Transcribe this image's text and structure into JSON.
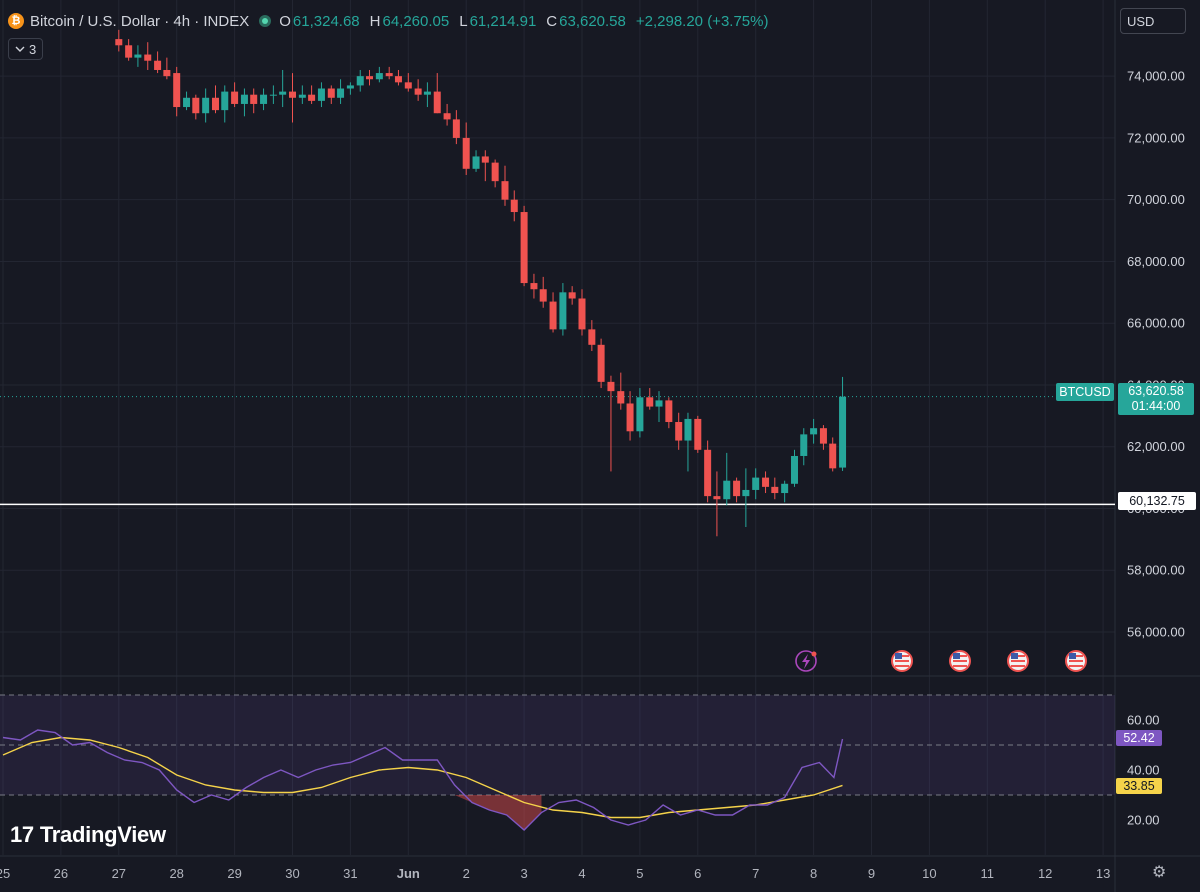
{
  "legend": {
    "coin_glyph": "₿",
    "symbol": "Bitcoin / U.S. Dollar · 4h · INDEX",
    "o_key": "O",
    "o_val": "61,324.68",
    "h_key": "H",
    "h_val": "64,260.05",
    "l_key": "L",
    "l_val": "61,214.91",
    "c_key": "C",
    "c_val": "63,620.58",
    "change": "+2,298.20 (+3.75%)",
    "indicators_count": "3"
  },
  "currency": "USD",
  "price_tags": {
    "symbol": "BTCUSD",
    "last_price": "63,620.58",
    "countdown": "01:44:00",
    "level": "60,132.75"
  },
  "rsi_tags": {
    "value": "52.42",
    "ma": "33.85"
  },
  "branding": "TradingView",
  "colors": {
    "up": "#26a69a",
    "down": "#ef5350",
    "rsi": "#7e57c2",
    "rsi_ma": "#f5d34a",
    "background": "#171923"
  },
  "chart_data": [
    {
      "type": "candlestick",
      "title": "Bitcoin / U.S. Dollar · 4h · INDEX",
      "y_ticks": [
        56000,
        58000,
        60000,
        62000,
        64000,
        66000,
        68000,
        70000,
        72000,
        74000
      ],
      "y_tick_labels": [
        "56,000.00",
        "58,000.00",
        "60,000.00",
        "62,000.00",
        "64,000.00",
        "66,000.00",
        "68,000.00",
        "70,000.00",
        "72,000.00",
        "74,000.00"
      ],
      "ylim": [
        55000,
        75200
      ],
      "x_ticks": [
        {
          "label": "25",
          "day": 25
        },
        {
          "label": "26",
          "day": 26
        },
        {
          "label": "27",
          "day": 27
        },
        {
          "label": "28",
          "day": 28
        },
        {
          "label": "29",
          "day": 29
        },
        {
          "label": "30",
          "day": 30
        },
        {
          "label": "31",
          "day": 31
        },
        {
          "label": "Jun",
          "day": 32
        },
        {
          "label": "2",
          "day": 33
        },
        {
          "label": "3",
          "day": 34
        },
        {
          "label": "4",
          "day": 35
        },
        {
          "label": "5",
          "day": 36
        },
        {
          "label": "6",
          "day": 37
        },
        {
          "label": "7",
          "day": 38
        },
        {
          "label": "8",
          "day": 39
        },
        {
          "label": "9",
          "day": 40
        },
        {
          "label": "10",
          "day": 41
        },
        {
          "label": "11",
          "day": 42
        },
        {
          "label": "12",
          "day": 43
        },
        {
          "label": "13",
          "day": 44
        }
      ],
      "horizontal_line": 60132.75,
      "last_price": 63620.58,
      "candles": [
        {
          "day": 27.0,
          "o": 75200,
          "h": 75500,
          "l": 74800,
          "c": 75000
        },
        {
          "day": 27.17,
          "o": 75000,
          "h": 75200,
          "l": 74500,
          "c": 74600
        },
        {
          "day": 27.33,
          "o": 74600,
          "h": 75000,
          "l": 74300,
          "c": 74700
        },
        {
          "day": 27.5,
          "o": 74700,
          "h": 75100,
          "l": 74200,
          "c": 74500
        },
        {
          "day": 27.67,
          "o": 74500,
          "h": 74800,
          "l": 74100,
          "c": 74200
        },
        {
          "day": 27.83,
          "o": 74200,
          "h": 74600,
          "l": 73900,
          "c": 74000
        },
        {
          "day": 28.0,
          "o": 74100,
          "h": 74300,
          "l": 72700,
          "c": 73000
        },
        {
          "day": 28.17,
          "o": 73000,
          "h": 73500,
          "l": 72900,
          "c": 73300
        },
        {
          "day": 28.33,
          "o": 73300,
          "h": 73400,
          "l": 72600,
          "c": 72800
        },
        {
          "day": 28.5,
          "o": 72800,
          "h": 73600,
          "l": 72500,
          "c": 73300
        },
        {
          "day": 28.67,
          "o": 73300,
          "h": 73700,
          "l": 72800,
          "c": 72900
        },
        {
          "day": 28.83,
          "o": 72900,
          "h": 73700,
          "l": 72500,
          "c": 73500
        },
        {
          "day": 29.0,
          "o": 73500,
          "h": 73800,
          "l": 73000,
          "c": 73100
        },
        {
          "day": 29.17,
          "o": 73100,
          "h": 73600,
          "l": 72700,
          "c": 73400
        },
        {
          "day": 29.33,
          "o": 73400,
          "h": 73600,
          "l": 72800,
          "c": 73100
        },
        {
          "day": 29.5,
          "o": 73100,
          "h": 73600,
          "l": 72900,
          "c": 73400
        },
        {
          "day": 29.67,
          "o": 73400,
          "h": 73700,
          "l": 73100,
          "c": 73400
        },
        {
          "day": 29.83,
          "o": 73400,
          "h": 74200,
          "l": 73000,
          "c": 73500
        },
        {
          "day": 30.0,
          "o": 73500,
          "h": 74100,
          "l": 72500,
          "c": 73300
        },
        {
          "day": 30.17,
          "o": 73300,
          "h": 73700,
          "l": 73100,
          "c": 73400
        },
        {
          "day": 30.33,
          "o": 73400,
          "h": 73700,
          "l": 73100,
          "c": 73200
        },
        {
          "day": 30.5,
          "o": 73200,
          "h": 73800,
          "l": 73000,
          "c": 73600
        },
        {
          "day": 30.67,
          "o": 73600,
          "h": 73700,
          "l": 73100,
          "c": 73300
        },
        {
          "day": 30.83,
          "o": 73300,
          "h": 73900,
          "l": 73100,
          "c": 73600
        },
        {
          "day": 31.0,
          "o": 73600,
          "h": 73800,
          "l": 73400,
          "c": 73700
        },
        {
          "day": 31.17,
          "o": 73700,
          "h": 74200,
          "l": 73500,
          "c": 74000
        },
        {
          "day": 31.33,
          "o": 74000,
          "h": 74200,
          "l": 73700,
          "c": 73900
        },
        {
          "day": 31.5,
          "o": 73900,
          "h": 74300,
          "l": 73800,
          "c": 74100
        },
        {
          "day": 31.67,
          "o": 74100,
          "h": 74300,
          "l": 73900,
          "c": 74000
        },
        {
          "day": 31.83,
          "o": 74000,
          "h": 74200,
          "l": 73700,
          "c": 73800
        },
        {
          "day": 32.0,
          "o": 73800,
          "h": 74100,
          "l": 73500,
          "c": 73600
        },
        {
          "day": 32.17,
          "o": 73600,
          "h": 73900,
          "l": 73200,
          "c": 73400
        },
        {
          "day": 32.33,
          "o": 73400,
          "h": 73800,
          "l": 73000,
          "c": 73500
        },
        {
          "day": 32.5,
          "o": 73500,
          "h": 74100,
          "l": 72800,
          "c": 72800
        },
        {
          "day": 32.67,
          "o": 72800,
          "h": 73100,
          "l": 72400,
          "c": 72600
        },
        {
          "day": 32.83,
          "o": 72600,
          "h": 72900,
          "l": 71800,
          "c": 72000
        },
        {
          "day": 33.0,
          "o": 72000,
          "h": 72500,
          "l": 70800,
          "c": 71000
        },
        {
          "day": 33.17,
          "o": 71000,
          "h": 71600,
          "l": 70900,
          "c": 71400
        },
        {
          "day": 33.33,
          "o": 71400,
          "h": 71600,
          "l": 70600,
          "c": 71200
        },
        {
          "day": 33.5,
          "o": 71200,
          "h": 71300,
          "l": 70400,
          "c": 70600
        },
        {
          "day": 33.67,
          "o": 70600,
          "h": 71100,
          "l": 69800,
          "c": 70000
        },
        {
          "day": 33.83,
          "o": 70000,
          "h": 70300,
          "l": 69300,
          "c": 69600
        },
        {
          "day": 34.0,
          "o": 69600,
          "h": 69800,
          "l": 67200,
          "c": 67300
        },
        {
          "day": 34.17,
          "o": 67300,
          "h": 67600,
          "l": 66800,
          "c": 67100
        },
        {
          "day": 34.33,
          "o": 67100,
          "h": 67500,
          "l": 66500,
          "c": 66700
        },
        {
          "day": 34.5,
          "o": 66700,
          "h": 67000,
          "l": 65700,
          "c": 65800
        },
        {
          "day": 34.67,
          "o": 65800,
          "h": 67300,
          "l": 65600,
          "c": 67000
        },
        {
          "day": 34.83,
          "o": 67000,
          "h": 67200,
          "l": 66600,
          "c": 66800
        },
        {
          "day": 35.0,
          "o": 66800,
          "h": 67100,
          "l": 65600,
          "c": 65800
        },
        {
          "day": 35.17,
          "o": 65800,
          "h": 66100,
          "l": 65100,
          "c": 65300
        },
        {
          "day": 35.33,
          "o": 65300,
          "h": 65500,
          "l": 63900,
          "c": 64100
        },
        {
          "day": 35.5,
          "o": 64100,
          "h": 64300,
          "l": 61200,
          "c": 63800
        },
        {
          "day": 35.67,
          "o": 63800,
          "h": 64400,
          "l": 63200,
          "c": 63400
        },
        {
          "day": 35.83,
          "o": 63400,
          "h": 63800,
          "l": 62200,
          "c": 62500
        },
        {
          "day": 36.0,
          "o": 62500,
          "h": 63900,
          "l": 62300,
          "c": 63600
        },
        {
          "day": 36.17,
          "o": 63600,
          "h": 63900,
          "l": 63200,
          "c": 63300
        },
        {
          "day": 36.33,
          "o": 63300,
          "h": 63800,
          "l": 62800,
          "c": 63500
        },
        {
          "day": 36.5,
          "o": 63500,
          "h": 63600,
          "l": 62600,
          "c": 62800
        },
        {
          "day": 36.67,
          "o": 62800,
          "h": 63100,
          "l": 61900,
          "c": 62200
        },
        {
          "day": 36.83,
          "o": 62200,
          "h": 63100,
          "l": 61200,
          "c": 62900
        },
        {
          "day": 37.0,
          "o": 62900,
          "h": 63000,
          "l": 61800,
          "c": 61900
        },
        {
          "day": 37.17,
          "o": 61900,
          "h": 62200,
          "l": 60200,
          "c": 60400
        },
        {
          "day": 37.33,
          "o": 60400,
          "h": 61200,
          "l": 59100,
          "c": 60300
        },
        {
          "day": 37.5,
          "o": 60300,
          "h": 61800,
          "l": 60100,
          "c": 60900
        },
        {
          "day": 37.67,
          "o": 60900,
          "h": 61000,
          "l": 60200,
          "c": 60400
        },
        {
          "day": 37.83,
          "o": 60400,
          "h": 61300,
          "l": 59400,
          "c": 60600
        },
        {
          "day": 38.0,
          "o": 60600,
          "h": 61300,
          "l": 60300,
          "c": 61000
        },
        {
          "day": 38.17,
          "o": 61000,
          "h": 61200,
          "l": 60500,
          "c": 60700
        },
        {
          "day": 38.33,
          "o": 60700,
          "h": 61000,
          "l": 60300,
          "c": 60500
        },
        {
          "day": 38.5,
          "o": 60500,
          "h": 60900,
          "l": 60200,
          "c": 60800
        },
        {
          "day": 38.67,
          "o": 60800,
          "h": 61900,
          "l": 60700,
          "c": 61700
        },
        {
          "day": 38.83,
          "o": 61700,
          "h": 62600,
          "l": 61400,
          "c": 62400
        },
        {
          "day": 39.0,
          "o": 62400,
          "h": 62900,
          "l": 62100,
          "c": 62600
        },
        {
          "day": 39.17,
          "o": 62600,
          "h": 62700,
          "l": 61900,
          "c": 62100
        },
        {
          "day": 39.33,
          "o": 62100,
          "h": 62300,
          "l": 61200,
          "c": 61300
        },
        {
          "day": 39.5,
          "o": 61324.68,
          "h": 64260.05,
          "l": 61214.91,
          "c": 63620.58
        }
      ]
    },
    {
      "type": "line",
      "title": "RSI",
      "y_ticks": [
        20,
        40,
        60
      ],
      "y_tick_labels": [
        "20.00",
        "40.00",
        "60.00"
      ],
      "ylim": [
        11,
        71
      ],
      "band": [
        30,
        70
      ],
      "band_mid": 50,
      "series": [
        {
          "values": [
            [
              25.0,
              53
            ],
            [
              25.3,
              52
            ],
            [
              25.6,
              56
            ],
            [
              25.9,
              55
            ],
            [
              26.2,
              50
            ],
            [
              26.5,
              51
            ],
            [
              26.8,
              47
            ],
            [
              27.1,
              44
            ],
            [
              27.4,
              43
            ],
            [
              27.7,
              40
            ],
            [
              28.0,
              32
            ],
            [
              28.3,
              27
            ],
            [
              28.6,
              30
            ],
            [
              28.9,
              28
            ],
            [
              29.2,
              33
            ],
            [
              29.5,
              37
            ],
            [
              29.8,
              40
            ],
            [
              30.1,
              37
            ],
            [
              30.4,
              40
            ],
            [
              30.7,
              42
            ],
            [
              31.0,
              43
            ],
            [
              31.3,
              46
            ],
            [
              31.6,
              49
            ],
            [
              31.9,
              44
            ],
            [
              32.2,
              44
            ],
            [
              32.5,
              44
            ],
            [
              32.8,
              34
            ],
            [
              33.1,
              27
            ],
            [
              33.4,
              24
            ],
            [
              33.7,
              22
            ],
            [
              34.0,
              16
            ],
            [
              34.3,
              23
            ],
            [
              34.6,
              27
            ],
            [
              34.9,
              28
            ],
            [
              35.2,
              25
            ],
            [
              35.5,
              20
            ],
            [
              35.8,
              18
            ],
            [
              36.1,
              20
            ],
            [
              36.4,
              26
            ],
            [
              36.7,
              22
            ],
            [
              37.0,
              24
            ],
            [
              37.3,
              22
            ],
            [
              37.6,
              22
            ],
            [
              37.9,
              26
            ],
            [
              38.2,
              26
            ],
            [
              38.5,
              29
            ],
            [
              38.8,
              41
            ],
            [
              39.1,
              43
            ],
            [
              39.35,
              37
            ],
            [
              39.5,
              52.42
            ]
          ]
        },
        {
          "values": [
            [
              25.0,
              46
            ],
            [
              25.5,
              51
            ],
            [
              26.0,
              53
            ],
            [
              26.5,
              52
            ],
            [
              27.0,
              49
            ],
            [
              27.5,
              45
            ],
            [
              28.0,
              38
            ],
            [
              28.5,
              34
            ],
            [
              29.0,
              32
            ],
            [
              29.5,
              31
            ],
            [
              30.0,
              31
            ],
            [
              30.5,
              33
            ],
            [
              31.0,
              37
            ],
            [
              31.5,
              40
            ],
            [
              32.0,
              41
            ],
            [
              32.5,
              40
            ],
            [
              33.0,
              37
            ],
            [
              33.5,
              32
            ],
            [
              34.0,
              27
            ],
            [
              34.5,
              24
            ],
            [
              35.0,
              23
            ],
            [
              35.5,
              21
            ],
            [
              36.0,
              21
            ],
            [
              36.5,
              23
            ],
            [
              37.0,
              24
            ],
            [
              37.5,
              25
            ],
            [
              38.0,
              26
            ],
            [
              38.5,
              28
            ],
            [
              39.0,
              30
            ],
            [
              39.5,
              33.85
            ]
          ]
        }
      ]
    }
  ]
}
